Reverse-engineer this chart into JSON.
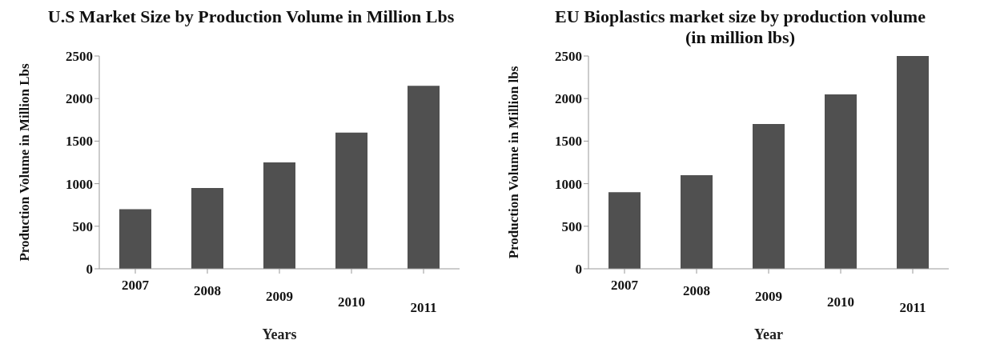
{
  "chart_data": [
    {
      "type": "bar",
      "title": "U.S Market Size by Production Volume in Million Lbs",
      "xlabel": "Years",
      "ylabel": "Production Volume in Million Lbs",
      "categories": [
        "2007",
        "2008",
        "2009",
        "2010",
        "2011"
      ],
      "values": [
        700,
        950,
        1250,
        1600,
        2150
      ],
      "color": "#505050",
      "ylim": [
        0,
        2500
      ],
      "yticks": [
        0,
        500,
        1000,
        1500,
        2000,
        2500
      ]
    },
    {
      "type": "bar",
      "title": "EU Bioplastics market size by production volume\n(in million lbs)",
      "xlabel": "Year",
      "ylabel": "Production Volume in Million lbs",
      "categories": [
        "2007",
        "2008",
        "2009",
        "2010",
        "2011"
      ],
      "values": [
        900,
        1100,
        1700,
        2050,
        2500
      ],
      "color": "#505050",
      "ylim": [
        0,
        2500
      ],
      "yticks": [
        0,
        500,
        1000,
        1500,
        2000,
        2500
      ]
    }
  ]
}
